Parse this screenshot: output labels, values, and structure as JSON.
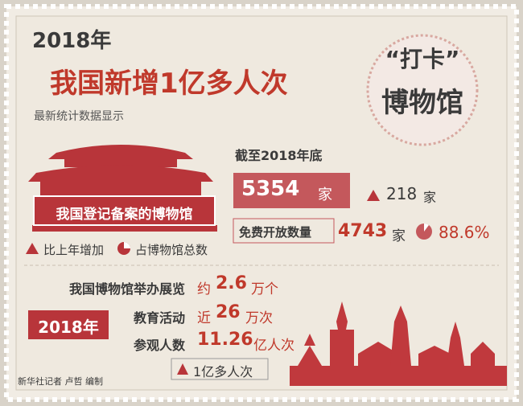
{
  "header": {
    "year": "2018年",
    "title": "我国新增1亿多人次",
    "stamp_top": "“打卡”",
    "stamp_bottom": "博物馆"
  },
  "subtitle": "最新统计数据显示",
  "museum_label": "我国登记备案的博物馆",
  "legend": {
    "increase": "比上年增加",
    "share": "占博物馆总数"
  },
  "stats": {
    "as_of": "截至2018年底",
    "total": "5354",
    "total_unit": "家",
    "increase": "218",
    "increase_unit": "家",
    "free_label": "免费开放数量",
    "free": "4743",
    "free_unit": "家",
    "free_share": "88.6%"
  },
  "activities": {
    "year": "2018年",
    "rows": [
      {
        "label": "我国博物馆举办展览",
        "prefix": "约",
        "value": "2.6",
        "unit": "万个"
      },
      {
        "label": "教育活动",
        "prefix": "近",
        "value": "26",
        "unit": "万次"
      },
      {
        "label": "参观人数",
        "value": "11.26",
        "unit": "亿人次"
      }
    ],
    "visitor_increase": "1亿多人次"
  },
  "credit": "新华社记者 卢哲 编制"
}
